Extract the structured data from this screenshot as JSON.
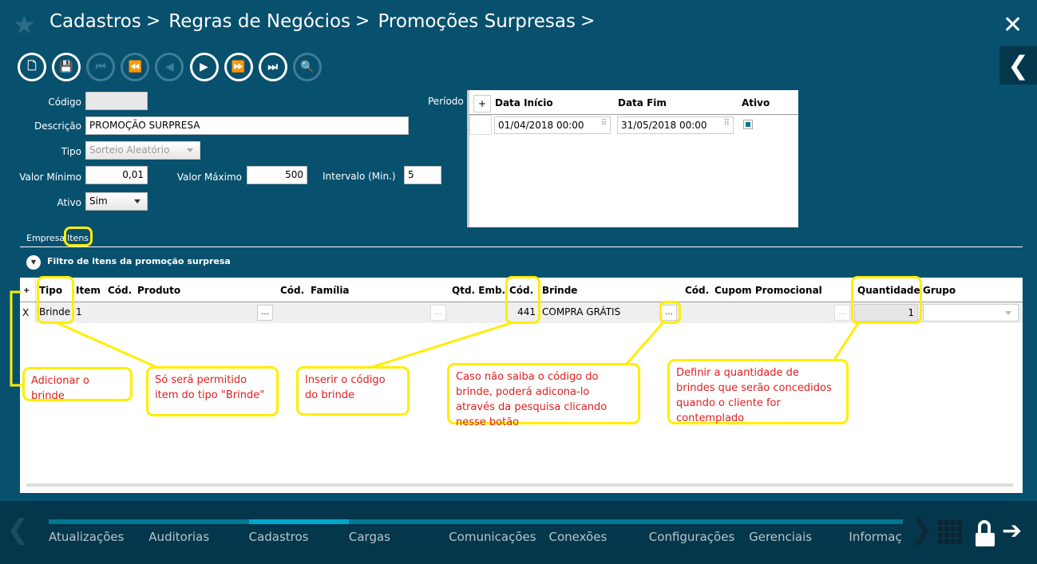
{
  "header": {
    "breadcrumb": [
      "Cadastros",
      "Regras de Negócios",
      "Promoções Surpresas"
    ],
    "separator": ">",
    "close": "✕",
    "back": "❮"
  },
  "toolbar": [
    {
      "name": "new-icon",
      "glyph": "🗋",
      "enabled": true
    },
    {
      "name": "save-icon",
      "glyph": "💾",
      "enabled": true
    },
    {
      "name": "first-icon",
      "glyph": "⏮",
      "enabled": false
    },
    {
      "name": "rewind-icon",
      "glyph": "⏪",
      "enabled": false
    },
    {
      "name": "previous-icon",
      "glyph": "◀",
      "enabled": false
    },
    {
      "name": "next-icon",
      "glyph": "▶",
      "enabled": true
    },
    {
      "name": "fast-forward-icon",
      "glyph": "⏩",
      "enabled": true
    },
    {
      "name": "last-icon",
      "glyph": "⏭",
      "enabled": true
    },
    {
      "name": "search-icon",
      "glyph": "🔍",
      "enabled": false
    }
  ],
  "form": {
    "codigo_label": "Código",
    "codigo_value": "",
    "descricao_label": "Descrição",
    "descricao_value": "PROMOÇÃO SURPRESA",
    "tipo_label": "Tipo",
    "tipo_value": "Sorteio Aleatório",
    "valor_minimo_label": "Valor Mínimo",
    "valor_minimo_value": "0,01",
    "valor_maximo_label": "Valor Máximo",
    "valor_maximo_value": "500",
    "intervalo_label": "Intervalo (Min.)",
    "intervalo_value": "5",
    "ativo_label": "Ativo",
    "ativo_value": "Sim",
    "periodo_label": "Período"
  },
  "periodo": {
    "add": "+",
    "columns": [
      "Data Início",
      "Data Fim",
      "Ativo"
    ],
    "row": {
      "inicio": "01/04/2018 00:00",
      "fim": "31/05/2018 00:00",
      "ativo": true
    }
  },
  "tabs": [
    "Empresa",
    "Itens"
  ],
  "filter_label": "Filtro de itens da promoção surpresa",
  "grid": {
    "add": "+",
    "columns": [
      "Tipo",
      "Item",
      "Cód.",
      "Produto",
      "Cód.",
      "Família",
      "Qtd. Emb.",
      "Cód.",
      "Brinde",
      "Cód.",
      "Cupom Promocional",
      "Quantidade",
      "Grupo"
    ],
    "row": {
      "remove": "X",
      "tipo": "Brinde",
      "item": "1",
      "cod_produto": "",
      "produto": "",
      "cod_familia": "",
      "familia": "",
      "qtd_emb": "",
      "cod_brinde": "441",
      "brinde": "COMPRA GRÁTIS",
      "cod_cupom": "",
      "cupom": "",
      "quantidade": "1",
      "grupo": ""
    },
    "lookup": "..."
  },
  "annotations": {
    "add": "Adicionar o brinde",
    "tipo": "Só será permitido item do tipo \"Brinde\"",
    "codigo": "Inserir o código do brinde",
    "pesquisa": "Caso não saiba o código do brinde, poderá adicona-lo através da pesquisa clicando nesse botão",
    "quantidade": "Definir a quantidade de brindes que serão concedidos quando o cliente for contemplado"
  },
  "bottom_nav": {
    "items": [
      "Atualizações",
      "Auditorias",
      "Cadastros",
      "Cargas",
      "Comunicações",
      "Conexões",
      "Configurações",
      "Gerenciais",
      "Informaç"
    ],
    "active": 2,
    "prev": "❮",
    "next": "❯"
  },
  "colors": {
    "background": "#07516f",
    "bottom": "#04374c",
    "accent": "#00788f",
    "active": "#00a9cc",
    "highlight": "#ffee00",
    "note_text": "#e02020"
  }
}
